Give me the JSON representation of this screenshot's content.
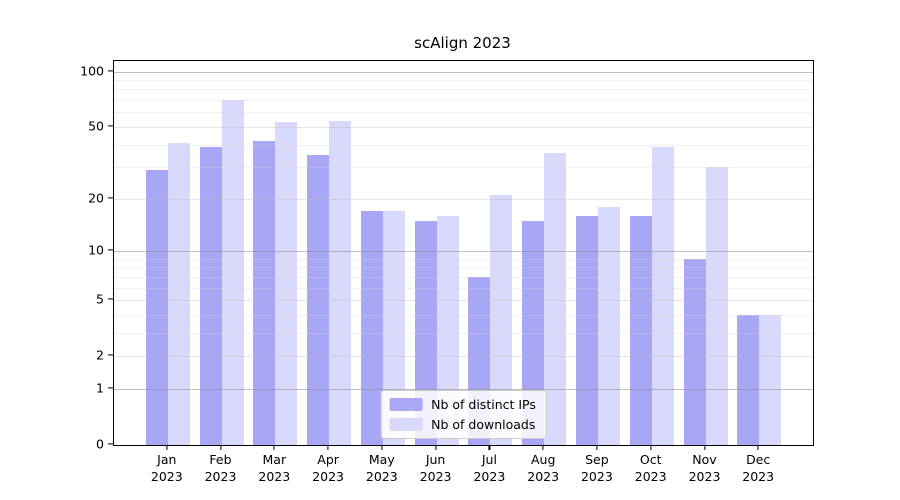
{
  "chart_data": {
    "type": "bar",
    "title": "scAlign 2023",
    "categories": [
      "Jan 2023",
      "Feb 2023",
      "Mar 2023",
      "Apr 2023",
      "May 2023",
      "Jun 2023",
      "Jul 2023",
      "Aug 2023",
      "Sep 2023",
      "Oct 2023",
      "Nov 2023",
      "Dec 2023"
    ],
    "series": [
      {
        "name": "Nb of distinct IPs",
        "color": "rgba(122,122,240,0.66)",
        "swatch_color": "#a9a9f5",
        "values": [
          29,
          39,
          42,
          35,
          17,
          15,
          7,
          15,
          16,
          16,
          9,
          4
        ]
      },
      {
        "name": "Nb of downloads",
        "color": "rgba(186,186,248,0.55)",
        "swatch_color": "#d9d9fb",
        "values": [
          41,
          70,
          53,
          54,
          17,
          16,
          21,
          36,
          18,
          39,
          30,
          4
        ]
      }
    ],
    "yscale": "log1p",
    "ylim": [
      0,
      114
    ],
    "y_major_ticks": [
      0,
      1,
      2,
      5,
      10,
      20,
      50,
      100
    ],
    "y_decade_gridlines": [
      1,
      10,
      100
    ],
    "y_mid_gridlines": [
      2,
      5,
      20,
      50
    ],
    "y_minor_gridlines": [
      3,
      4,
      6,
      7,
      8,
      9,
      30,
      40,
      60,
      70,
      80,
      90
    ],
    "grid": true,
    "legend_position": "lower center"
  },
  "colors": {
    "background": "#ffffff",
    "spine": "#000000",
    "tick_text": "#000000"
  }
}
